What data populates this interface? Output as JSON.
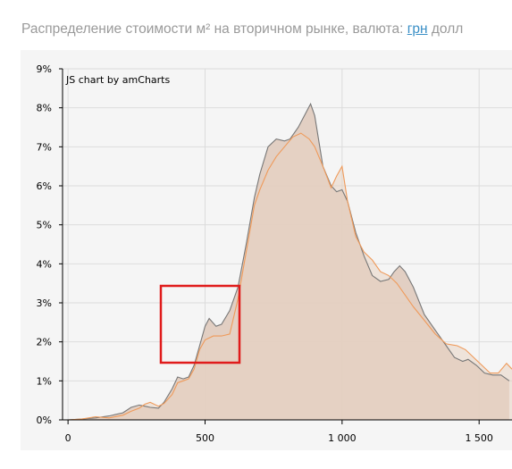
{
  "header": {
    "title_prefix": "Распределение стоимости м² на вторичном рынке, валюта:",
    "currency_active": "грн",
    "currency_other": "долл"
  },
  "credit": "JS chart by amCharts",
  "colors": {
    "series_gray": "#777777",
    "series_orange": "#ef9a5a",
    "fill": "#e0cbbe",
    "highlight": "#e01b1b"
  },
  "chart_data": {
    "type": "area",
    "xlim": [
      -20,
      1620
    ],
    "ylim": [
      0,
      9
    ],
    "x_ticks": [
      0,
      500,
      1000,
      1500
    ],
    "x_tick_labels": [
      "0",
      "500",
      "1 000",
      "1 500"
    ],
    "y_ticks": [
      0,
      1,
      2,
      3,
      4,
      5,
      6,
      7,
      8,
      9
    ],
    "y_tick_labels": [
      "0%",
      "1%",
      "2%",
      "3%",
      "4%",
      "5%",
      "6%",
      "7%",
      "8%",
      "9%"
    ],
    "grid": true,
    "series": [
      {
        "color": "#777777",
        "points": [
          [
            0,
            0
          ],
          [
            50,
            0.02
          ],
          [
            100,
            0.05
          ],
          [
            150,
            0.1
          ],
          [
            200,
            0.18
          ],
          [
            230,
            0.32
          ],
          [
            260,
            0.38
          ],
          [
            280,
            0.35
          ],
          [
            300,
            0.32
          ],
          [
            330,
            0.3
          ],
          [
            350,
            0.45
          ],
          [
            380,
            0.8
          ],
          [
            400,
            1.1
          ],
          [
            420,
            1.05
          ],
          [
            440,
            1.1
          ],
          [
            460,
            1.4
          ],
          [
            480,
            1.9
          ],
          [
            500,
            2.4
          ],
          [
            515,
            2.6
          ],
          [
            540,
            2.4
          ],
          [
            560,
            2.45
          ],
          [
            590,
            2.8
          ],
          [
            620,
            3.4
          ],
          [
            650,
            4.5
          ],
          [
            680,
            5.7
          ],
          [
            700,
            6.3
          ],
          [
            730,
            7.0
          ],
          [
            760,
            7.2
          ],
          [
            790,
            7.15
          ],
          [
            810,
            7.2
          ],
          [
            840,
            7.5
          ],
          [
            870,
            7.9
          ],
          [
            885,
            8.1
          ],
          [
            900,
            7.8
          ],
          [
            930,
            6.5
          ],
          [
            960,
            6.0
          ],
          [
            980,
            5.85
          ],
          [
            1000,
            5.9
          ],
          [
            1020,
            5.6
          ],
          [
            1050,
            4.8
          ],
          [
            1080,
            4.2
          ],
          [
            1110,
            3.7
          ],
          [
            1140,
            3.55
          ],
          [
            1170,
            3.6
          ],
          [
            1190,
            3.8
          ],
          [
            1210,
            3.95
          ],
          [
            1230,
            3.8
          ],
          [
            1260,
            3.4
          ],
          [
            1300,
            2.7
          ],
          [
            1340,
            2.3
          ],
          [
            1380,
            1.9
          ],
          [
            1410,
            1.6
          ],
          [
            1440,
            1.5
          ],
          [
            1460,
            1.55
          ],
          [
            1490,
            1.4
          ],
          [
            1520,
            1.2
          ],
          [
            1550,
            1.15
          ],
          [
            1580,
            1.15
          ],
          [
            1610,
            1.0
          ]
        ]
      },
      {
        "color": "#ef9a5a",
        "points": [
          [
            0,
            0
          ],
          [
            50,
            0.02
          ],
          [
            100,
            0.08
          ],
          [
            150,
            0.05
          ],
          [
            200,
            0.12
          ],
          [
            230,
            0.22
          ],
          [
            260,
            0.3
          ],
          [
            280,
            0.4
          ],
          [
            300,
            0.45
          ],
          [
            330,
            0.35
          ],
          [
            350,
            0.42
          ],
          [
            380,
            0.65
          ],
          [
            400,
            0.95
          ],
          [
            420,
            1.0
          ],
          [
            440,
            1.05
          ],
          [
            460,
            1.3
          ],
          [
            480,
            1.8
          ],
          [
            500,
            2.05
          ],
          [
            530,
            2.15
          ],
          [
            560,
            2.15
          ],
          [
            590,
            2.2
          ],
          [
            620,
            3.1
          ],
          [
            650,
            4.3
          ],
          [
            680,
            5.5
          ],
          [
            700,
            5.9
          ],
          [
            730,
            6.4
          ],
          [
            760,
            6.75
          ],
          [
            790,
            7.0
          ],
          [
            820,
            7.25
          ],
          [
            850,
            7.35
          ],
          [
            880,
            7.2
          ],
          [
            900,
            7.0
          ],
          [
            930,
            6.5
          ],
          [
            960,
            5.95
          ],
          [
            980,
            6.25
          ],
          [
            1000,
            6.5
          ],
          [
            1020,
            5.6
          ],
          [
            1050,
            4.7
          ],
          [
            1080,
            4.3
          ],
          [
            1110,
            4.1
          ],
          [
            1140,
            3.8
          ],
          [
            1170,
            3.7
          ],
          [
            1200,
            3.5
          ],
          [
            1230,
            3.2
          ],
          [
            1260,
            2.9
          ],
          [
            1300,
            2.55
          ],
          [
            1340,
            2.2
          ],
          [
            1380,
            1.95
          ],
          [
            1420,
            1.9
          ],
          [
            1450,
            1.8
          ],
          [
            1480,
            1.6
          ],
          [
            1510,
            1.4
          ],
          [
            1540,
            1.2
          ],
          [
            1570,
            1.2
          ],
          [
            1600,
            1.45
          ],
          [
            1620,
            1.3
          ]
        ]
      }
    ]
  }
}
